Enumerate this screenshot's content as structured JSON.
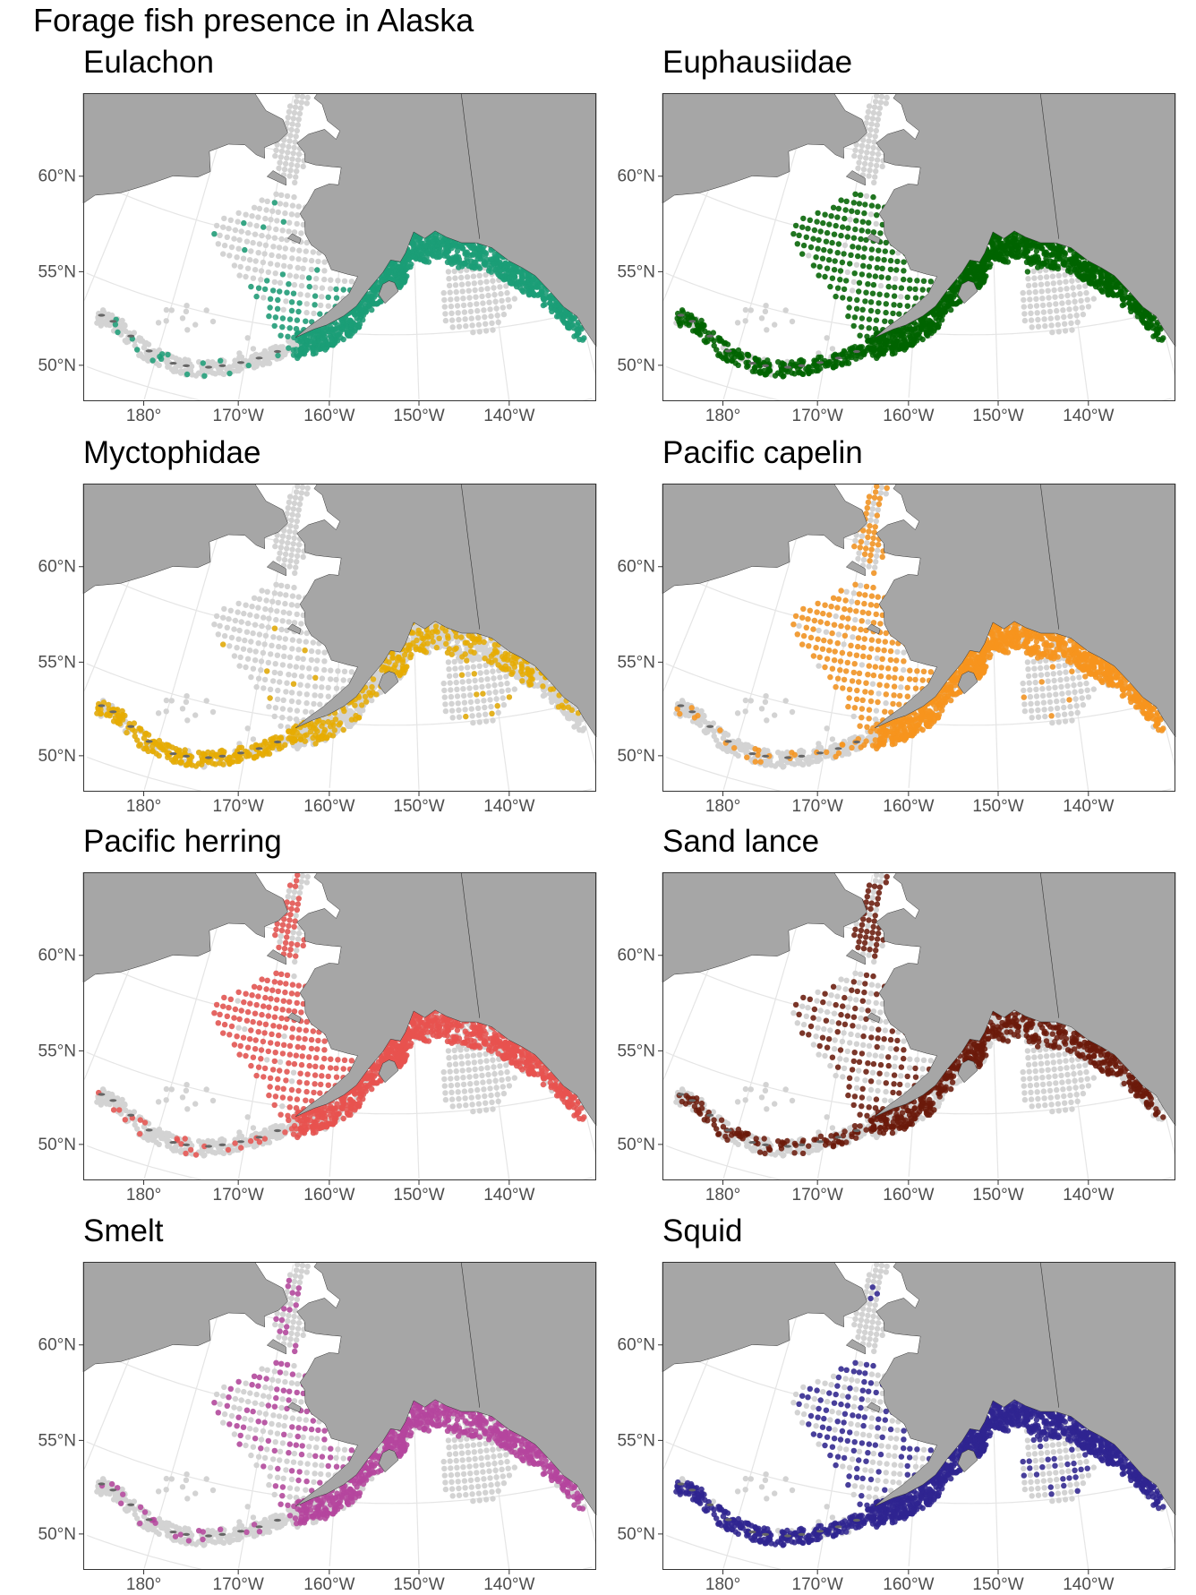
{
  "title": "Forage fish presence in Alaska",
  "chart_data": {
    "type": "scatter",
    "kind": "faceted presence/absence map",
    "x_ticks": [
      "180°",
      "170°W",
      "160°W",
      "150°W",
      "140°W"
    ],
    "x_tick_values": [
      -180,
      -170,
      -160,
      -150,
      -140
    ],
    "y_ticks": [
      "50°N",
      "55°N",
      "60°N"
    ],
    "y_tick_values": [
      50,
      55,
      60
    ],
    "grid": true,
    "land_color": "#a6a6a6",
    "absent_color": "#d3d3d3",
    "panels": [
      {
        "title": "Eulachon",
        "color": "#1b9e77",
        "presence": {
          "bering_shelf": 0.35,
          "northern_bering": 0.0,
          "gulf_of_alaska": 1.0,
          "aleutians": 0.05,
          "goa_offshore": 0.0
        }
      },
      {
        "title": "Euphausiidae",
        "color": "#006400",
        "presence": {
          "bering_shelf": 0.9,
          "northern_bering": 0.02,
          "gulf_of_alaska": 0.97,
          "aleutians": 0.9,
          "goa_offshore": 0.05
        }
      },
      {
        "title": "Myctophidae",
        "color": "#e6ab02",
        "presence": {
          "bering_shelf": 0.04,
          "northern_bering": 0.0,
          "gulf_of_alaska": 0.25,
          "aleutians": 0.75,
          "goa_offshore": 0.1
        }
      },
      {
        "title": "Pacific capelin",
        "color": "#f7941d",
        "presence": {
          "bering_shelf": 0.85,
          "northern_bering": 0.7,
          "gulf_of_alaska": 0.9,
          "aleutians": 0.08,
          "goa_offshore": 0.05
        }
      },
      {
        "title": "Pacific herring",
        "color": "#e8524f",
        "presence": {
          "bering_shelf": 0.95,
          "northern_bering": 0.6,
          "gulf_of_alaska": 0.8,
          "aleutians": 0.1,
          "goa_offshore": 0.0
        }
      },
      {
        "title": "Sand lance",
        "color": "#6b1a0a",
        "presence": {
          "bering_shelf": 0.45,
          "northern_bering": 0.7,
          "gulf_of_alaska": 0.5,
          "aleutians": 0.4,
          "goa_offshore": 0.0
        }
      },
      {
        "title": "Smelt",
        "color": "#b5459e",
        "presence": {
          "bering_shelf": 0.45,
          "northern_bering": 0.2,
          "gulf_of_alaska": 0.65,
          "aleutians": 0.08,
          "goa_offshore": 0.0
        }
      },
      {
        "title": "Squid",
        "color": "#2f2590",
        "presence": {
          "bering_shelf": 0.55,
          "northern_bering": 0.05,
          "gulf_of_alaska": 0.95,
          "aleutians": 0.9,
          "goa_offshore": 0.35
        }
      }
    ]
  }
}
